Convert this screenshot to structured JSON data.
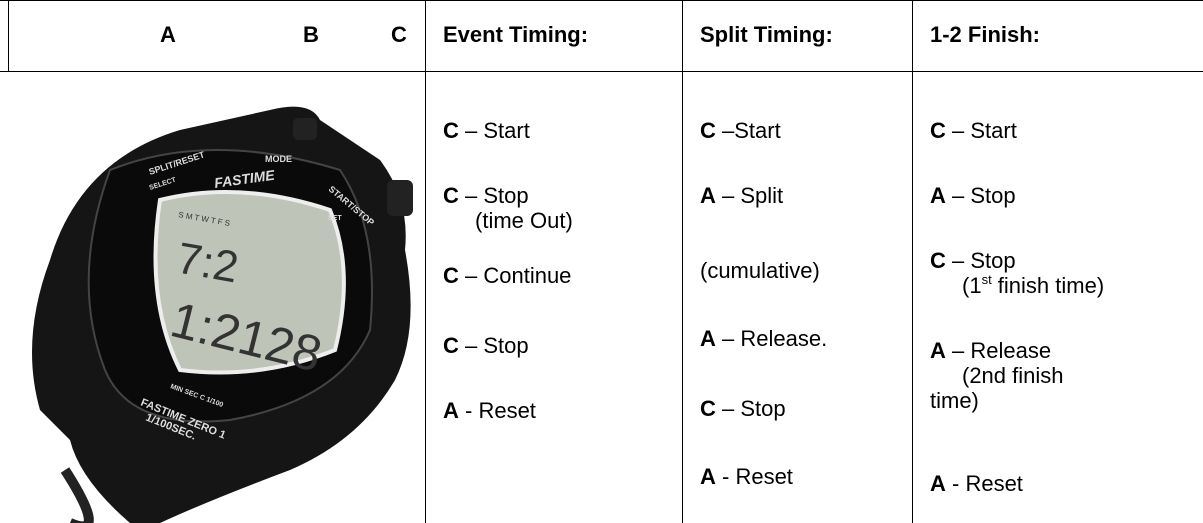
{
  "header": {
    "buttons": [
      "A",
      "B",
      "C"
    ],
    "columns": [
      "Event Timing:",
      "Split Timing:",
      "1-2 Finish:"
    ]
  },
  "image": {
    "brand": "FASTIME",
    "split_reset": "SPLIT/RESET",
    "select": "SELECT",
    "mode": "MODE",
    "start_stop": "START/STOP",
    "set": "SET",
    "days": "S M T W T F S",
    "display_top": "7:2",
    "display_main": "1:2128",
    "units": "MIN  SEC  C 1/100",
    "model": "FASTIME ZERO 1",
    "resolution": "1/100SEC."
  },
  "columns": [
    {
      "steps": [
        {
          "key": "C",
          "text": " – Start"
        },
        {
          "key": "C",
          "text": " – Stop",
          "lines": [
            "(time Out)"
          ]
        },
        {
          "key": "C",
          "text": " – Continue"
        },
        {
          "key": "C",
          "text": " – Stop"
        },
        {
          "key": "A",
          "text": " - Reset"
        }
      ]
    },
    {
      "steps": [
        {
          "key": "C",
          "text": " –Start"
        },
        {
          "key": "A",
          "text": " – Split"
        },
        {
          "text": "(cumulative)"
        },
        {
          "key": "A",
          "text": " – Release."
        },
        {
          "key": "C",
          "text": " – Stop"
        },
        {
          "key": "A",
          "text": " - Reset"
        }
      ]
    },
    {
      "steps": [
        {
          "key": "C",
          "text": " – Start"
        },
        {
          "key": "A",
          "text": " – Stop"
        },
        {
          "key": "C",
          "text": " – Stop",
          "lines": [
            {
              "text": "(1",
              "sup": "st",
              "tail": " finish time)"
            }
          ]
        },
        {
          "key": "A",
          "text": " – Release",
          "lines": [
            "(2nd finish",
            "time)"
          ]
        },
        {
          "key": "A",
          "text": " - Reset"
        }
      ]
    }
  ]
}
